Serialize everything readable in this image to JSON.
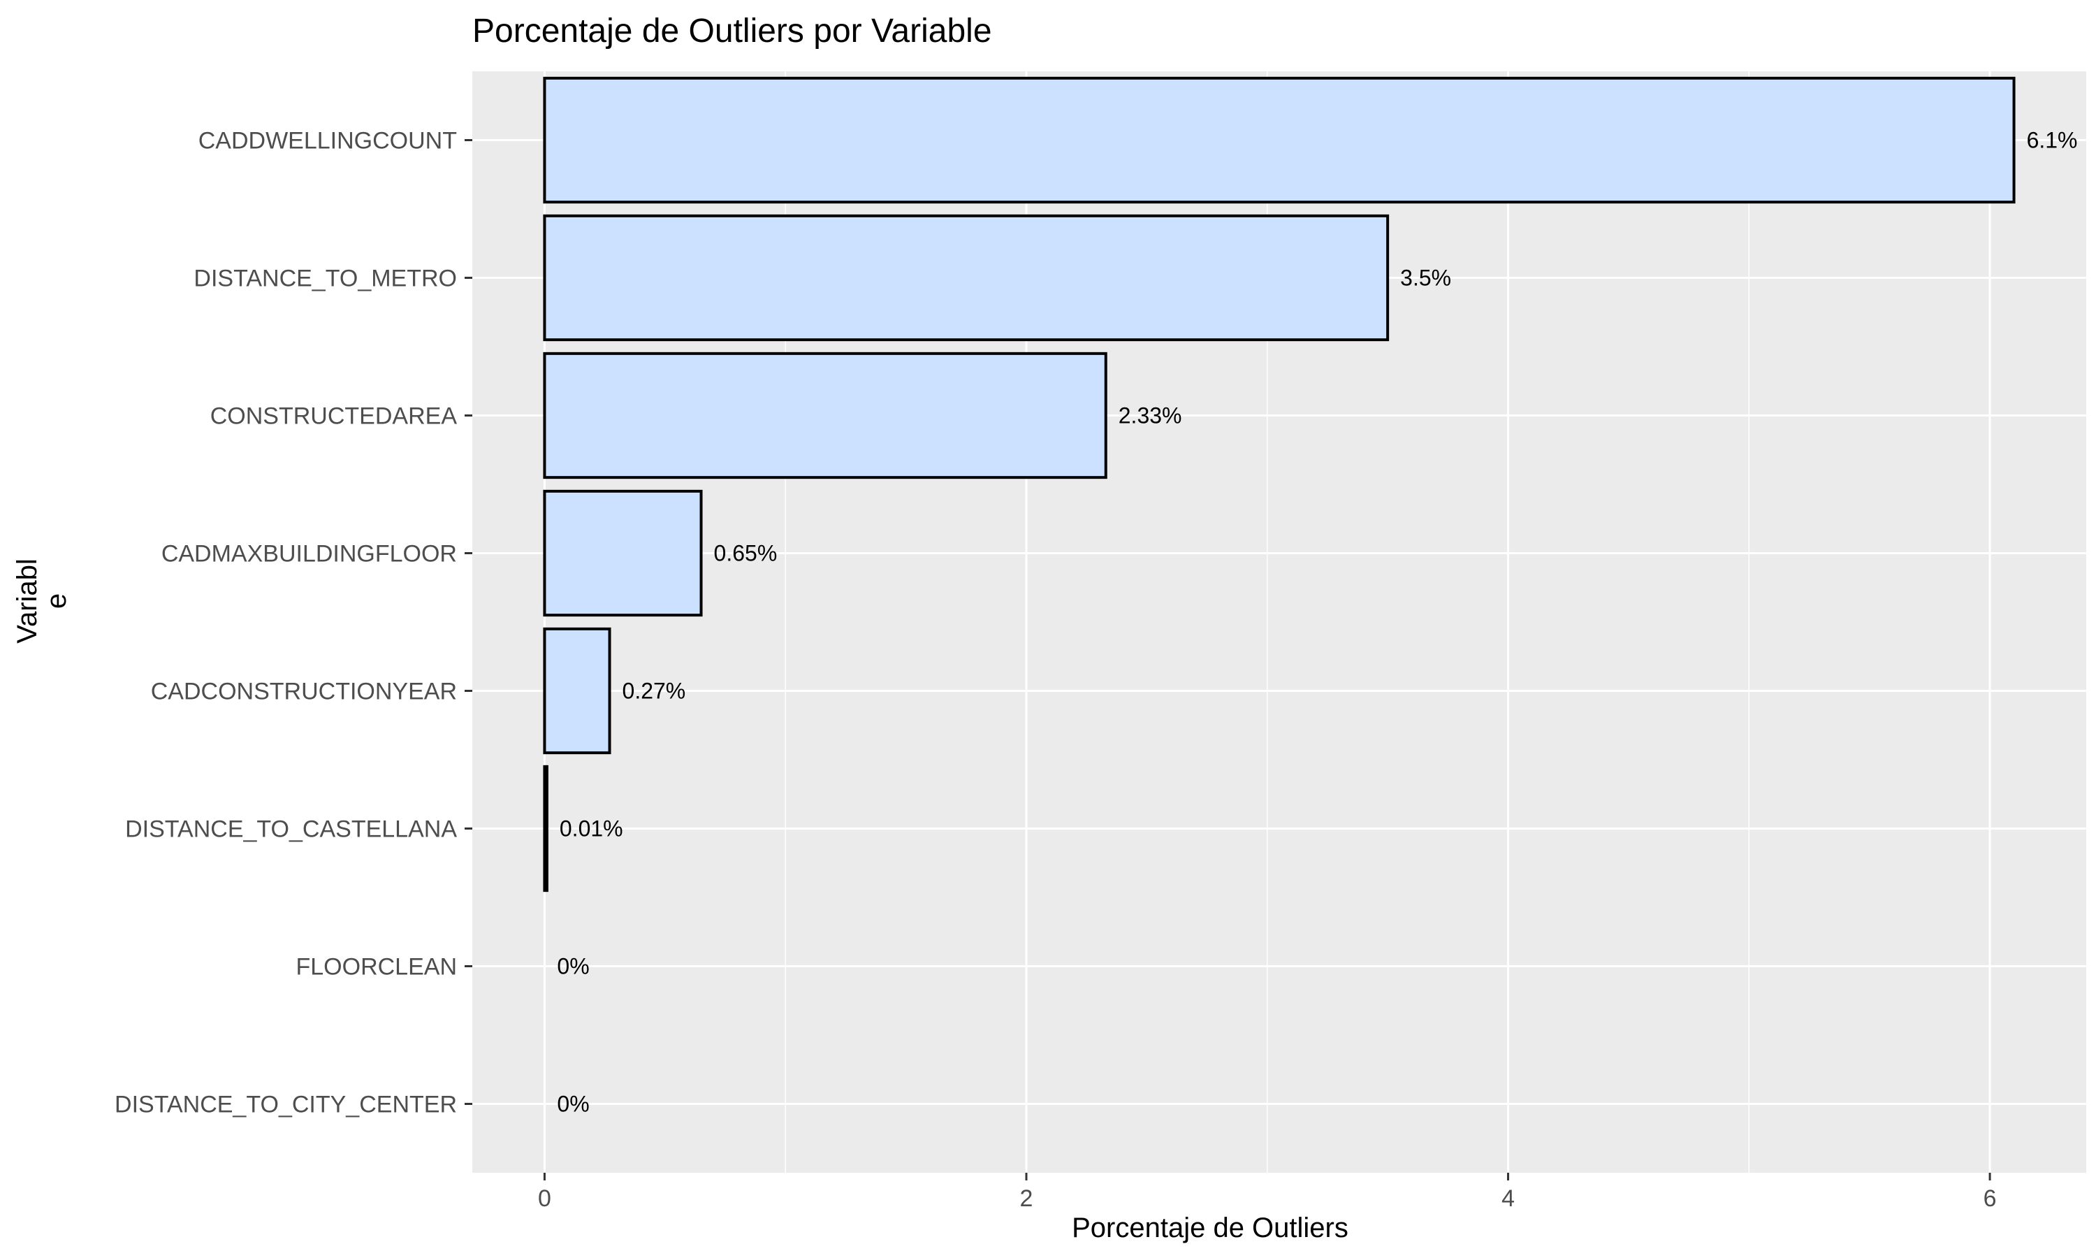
{
  "chart_data": {
    "type": "bar",
    "orientation": "horizontal",
    "title": "Porcentaje de Outliers por Variable",
    "xlabel": "Porcentaje de Outliers",
    "ylabel_lines": [
      "Variabl",
      "e"
    ],
    "categories": [
      "CADDWELLINGCOUNT",
      "DISTANCE_TO_METRO",
      "CONSTRUCTEDAREA",
      "CADMAXBUILDINGFLOOR",
      "CADCONSTRUCTIONYEAR",
      "DISTANCE_TO_CASTELLANA",
      "FLOORCLEAN",
      "DISTANCE_TO_CITY_CENTER"
    ],
    "values": [
      6.1,
      3.5,
      2.33,
      0.65,
      0.27,
      0.01,
      0,
      0
    ],
    "data_labels": [
      "6.1%",
      "3.5%",
      "2.33%",
      "0.65%",
      "0.27%",
      "0.01%",
      "0%",
      "0%"
    ],
    "xlim": [
      -0.3,
      6.4
    ],
    "xticks": [
      0,
      2,
      4,
      6
    ],
    "xtick_labels": [
      "0",
      "2",
      "4",
      "6"
    ],
    "grid": true,
    "legend": "none",
    "colors": {
      "bar_fill": "#cce0ff",
      "bar_stroke": "#000000",
      "panel_bg": "#ebebeb",
      "grid": "#ffffff"
    }
  }
}
